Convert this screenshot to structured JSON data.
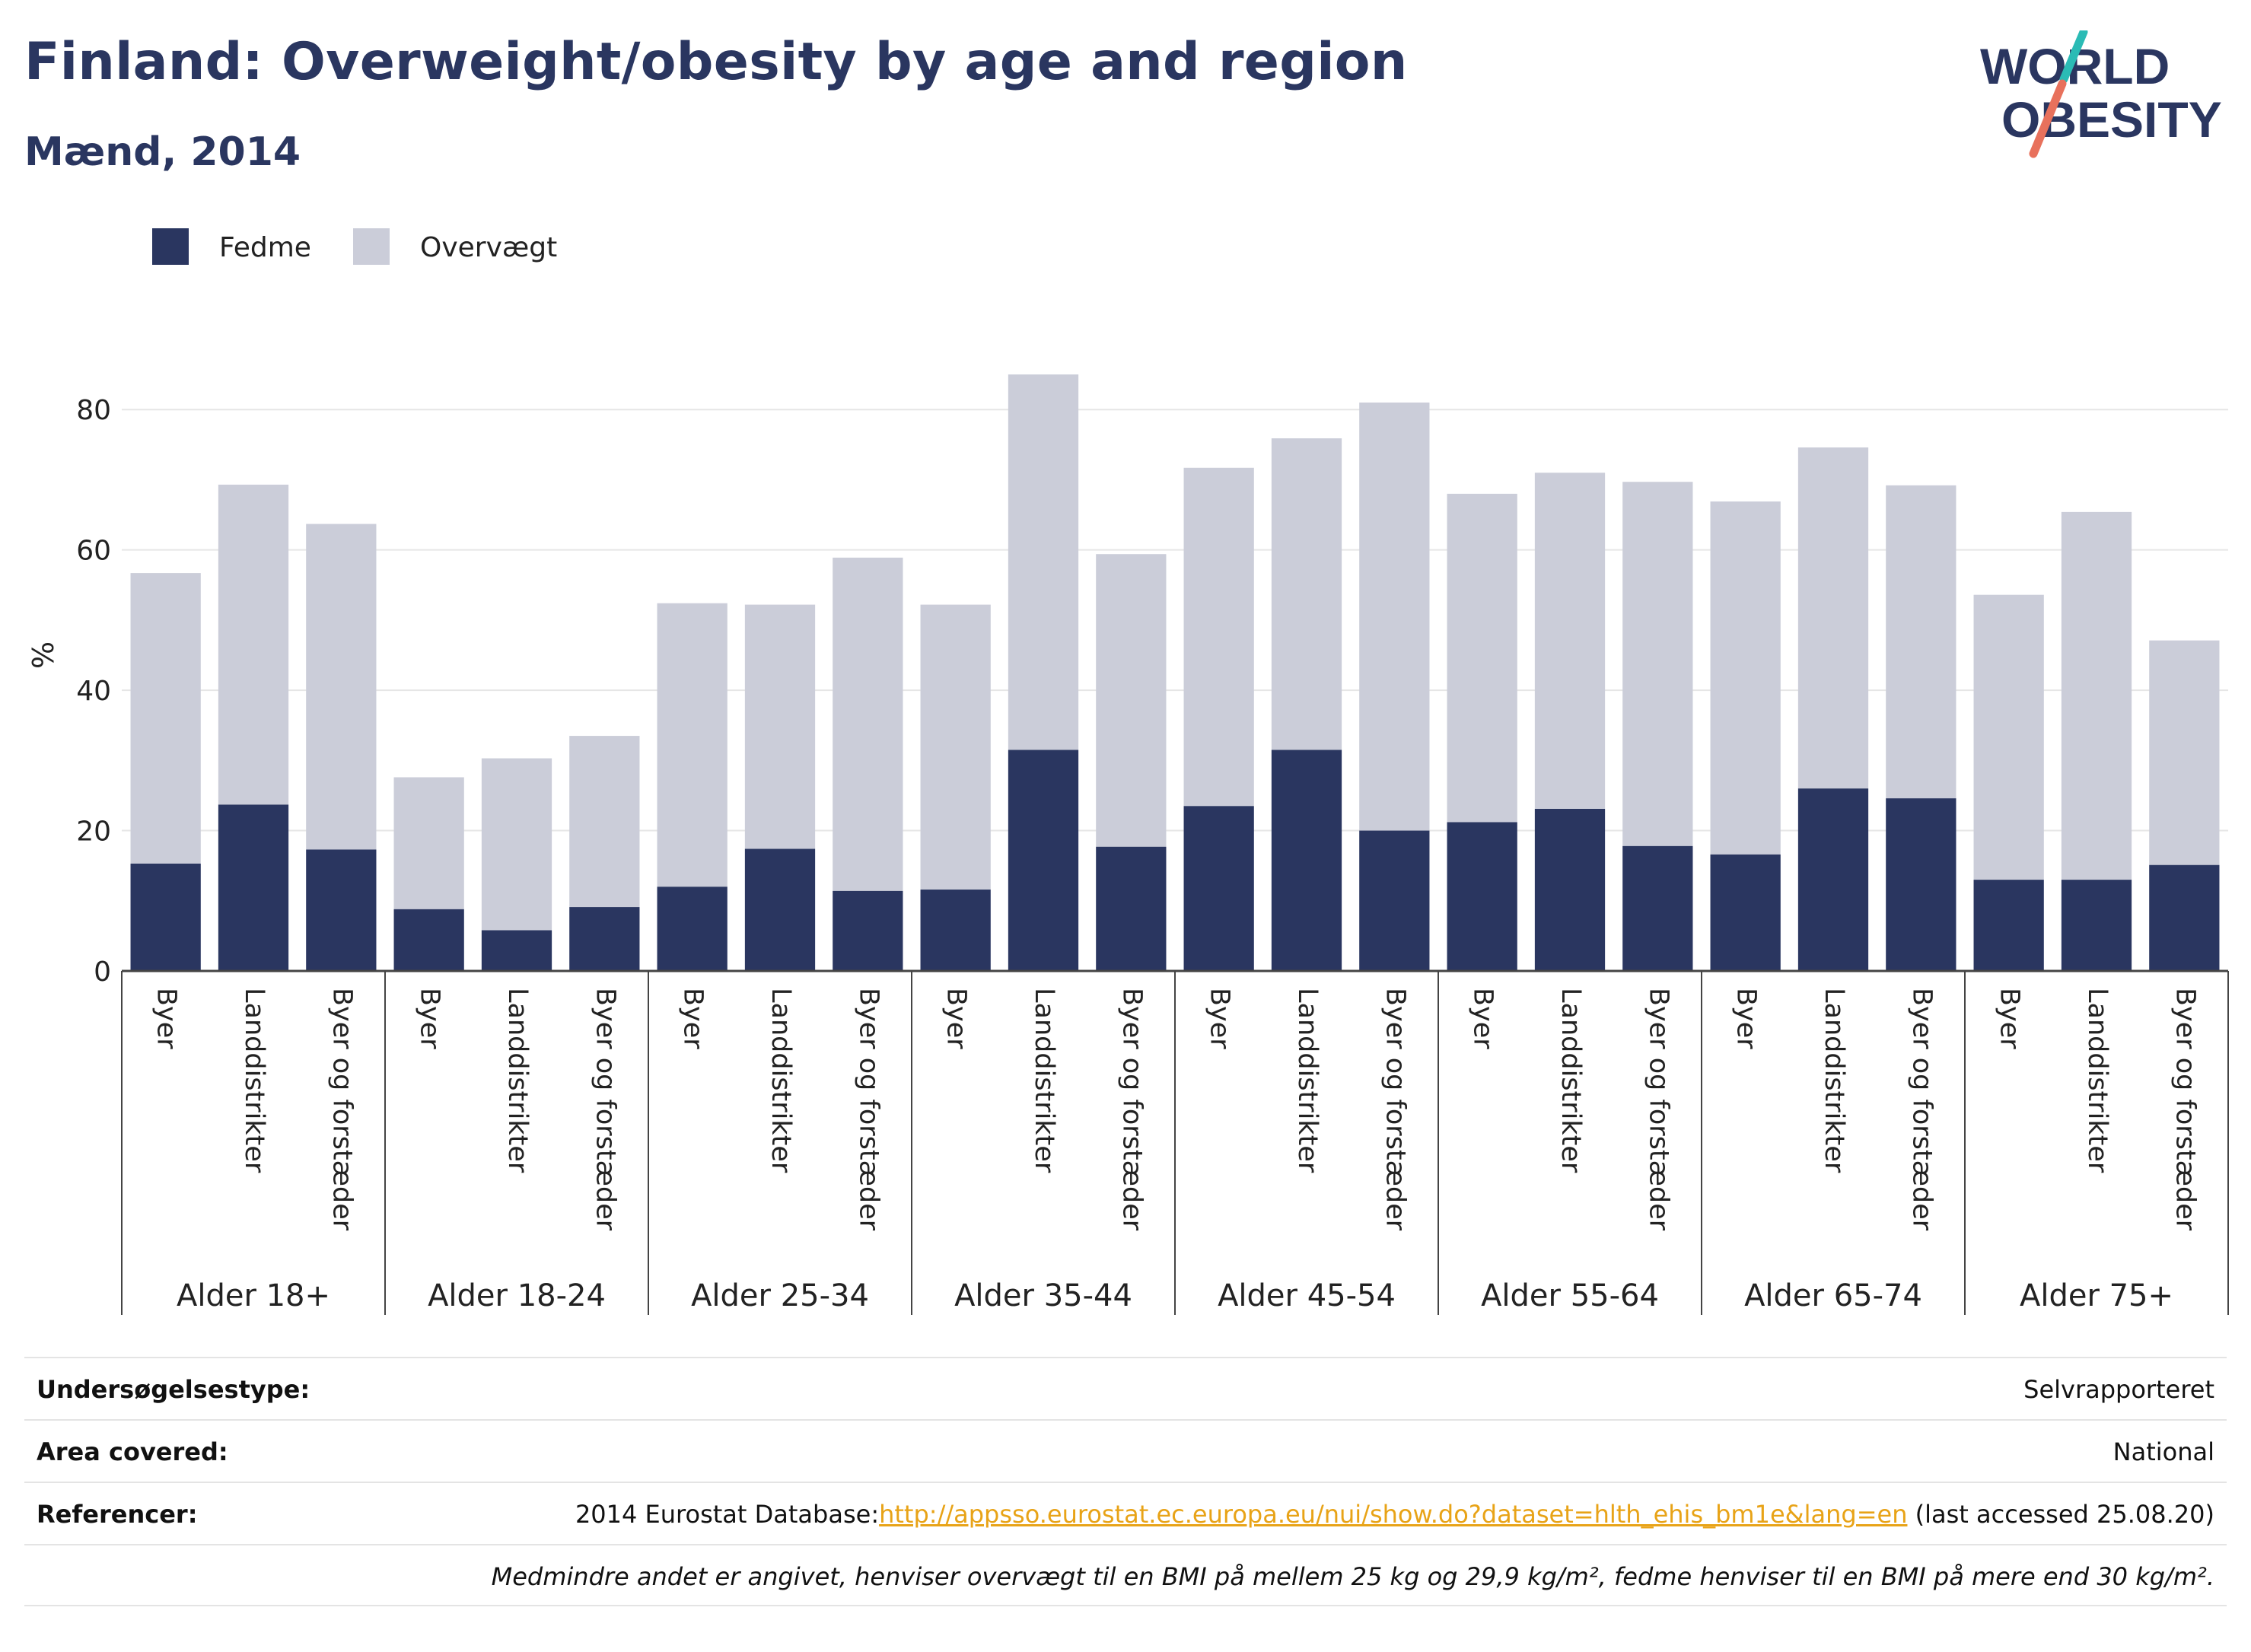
{
  "header": {
    "title": "Finland: Overweight/obesity by age and region",
    "subtitle": "Mænd, 2014",
    "logo_line1": "WORLD",
    "logo_line2": "OBESITY"
  },
  "colors": {
    "obesity": "#2a3660",
    "overweight": "#cbcdd9",
    "title": "#2a3660",
    "link": "#e8a317",
    "logo_teal": "#2bbbb5",
    "logo_coral": "#e8715c"
  },
  "chart_data": {
    "type": "bar",
    "stacked": true,
    "ylabel": "%",
    "ylim": [
      0,
      90
    ],
    "yticks": [
      0,
      20,
      40,
      60,
      80
    ],
    "grid": true,
    "legend_position": "top-left",
    "groups": [
      {
        "label": "Alder 18+",
        "categories": [
          "Byer",
          "Landdistrikter",
          "Byer og forstæder"
        ]
      },
      {
        "label": "Alder 18-24",
        "categories": [
          "Byer",
          "Landdistrikter",
          "Byer og forstæder"
        ]
      },
      {
        "label": "Alder 25-34",
        "categories": [
          "Byer",
          "Landdistrikter",
          "Byer og forstæder"
        ]
      },
      {
        "label": "Alder 35-44",
        "categories": [
          "Byer",
          "Landdistrikter",
          "Byer og forstæder"
        ]
      },
      {
        "label": "Alder 45-54",
        "categories": [
          "Byer",
          "Landdistrikter",
          "Byer og forstæder"
        ]
      },
      {
        "label": "Alder 55-64",
        "categories": [
          "Byer",
          "Landdistrikter",
          "Byer og forstæder"
        ]
      },
      {
        "label": "Alder 65-74",
        "categories": [
          "Byer",
          "Landdistrikter",
          "Byer og forstæder"
        ]
      },
      {
        "label": "Alder 75+",
        "categories": [
          "Byer",
          "Landdistrikter",
          "Byer og forstæder"
        ]
      }
    ],
    "series": [
      {
        "name": "Fedme",
        "values": [
          15.3,
          23.7,
          17.3,
          8.8,
          5.8,
          9.1,
          12.0,
          17.4,
          11.4,
          11.6,
          31.5,
          17.7,
          23.5,
          31.5,
          20.0,
          21.2,
          23.1,
          17.8,
          16.6,
          26.0,
          24.6,
          13.0,
          13.0,
          15.1
        ]
      },
      {
        "name": "Overvægt",
        "values": [
          41.4,
          45.6,
          46.4,
          18.8,
          24.5,
          24.4,
          40.4,
          34.8,
          47.5,
          40.6,
          53.5,
          41.7,
          48.2,
          44.4,
          61.0,
          46.8,
          47.9,
          51.9,
          50.3,
          48.6,
          44.6,
          40.6,
          52.4,
          32.0
        ]
      }
    ]
  },
  "info": {
    "survey_label": "Undersøgelsestype:",
    "survey_value": "Selvrapporteret",
    "area_label": "Area covered:",
    "area_value": "National",
    "ref_label": "Referencer:",
    "ref_prefix": "2014 Eurostat Database:",
    "ref_link": "http://appsso.eurostat.ec.europa.eu/nui/show.do?dataset=hlth_ehis_bm1e&lang=en",
    "ref_suffix": " (last accessed 25.08.20)",
    "note": "Medmindre andet er angivet, henviser overvægt til en BMI på mellem 25 kg og 29,9 kg/m², fedme henviser til en BMI på mere end 30 kg/m²."
  }
}
